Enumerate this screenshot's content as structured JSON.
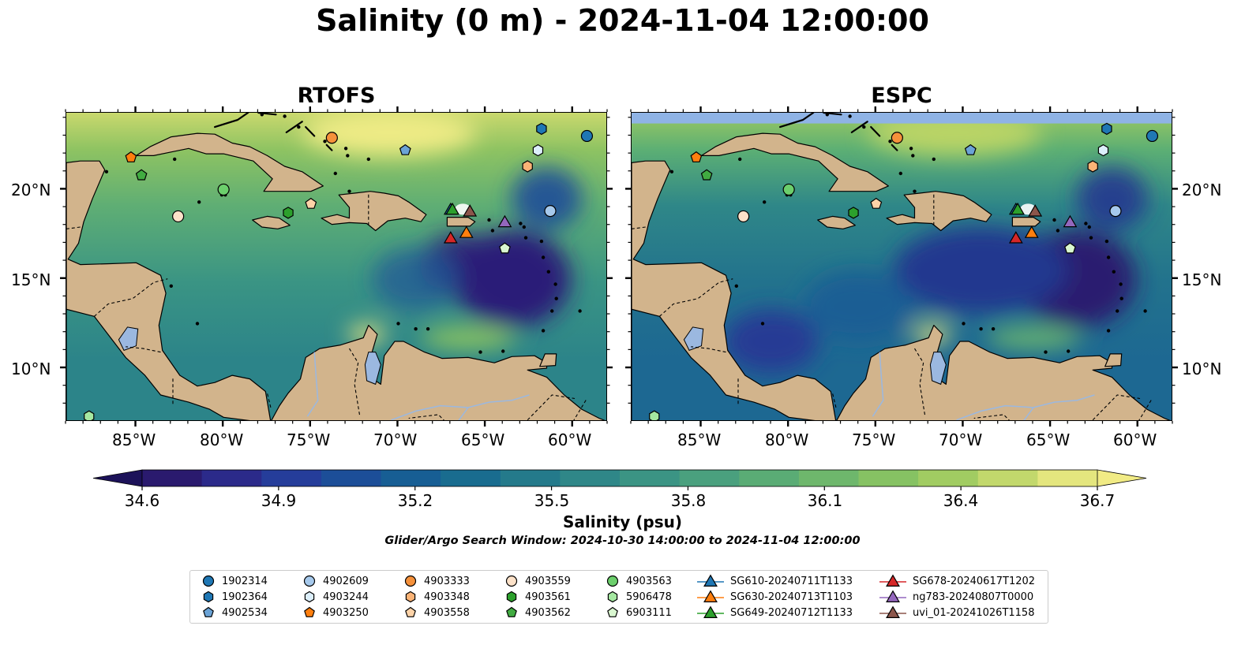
{
  "figure": {
    "title": "Salinity (0 m) - 2024-11-04 12:00:00"
  },
  "panels": [
    {
      "title": "RTOFS"
    },
    {
      "title": "ESPC"
    }
  ],
  "axes": {
    "lat_labels": [
      "20°N",
      "15°N",
      "10°N"
    ],
    "lon_labels": [
      "85°W",
      "80°W",
      "75°W",
      "70°W",
      "65°W",
      "60°W"
    ]
  },
  "colorbar": {
    "ticks": [
      "34.6",
      "34.9",
      "35.2",
      "35.5",
      "35.8",
      "36.1",
      "36.4",
      "36.7"
    ],
    "min": 34.6,
    "max": 36.7,
    "extend": "both",
    "colormap": "haline",
    "colors": [
      "#2a1a6e",
      "#2b2a8a",
      "#253d9a",
      "#1c4e98",
      "#175e94",
      "#196c8f",
      "#247a8b",
      "#2f8788",
      "#3b9484",
      "#4aa07e",
      "#5aac75",
      "#6eb76c",
      "#86c263",
      "#a1cc62",
      "#c2d86c",
      "#e4e67e"
    ],
    "label": "Salinity (psu)"
  },
  "search_window": "Glider/Argo Search Window: 2024-10-30 14:00:00 to 2024-11-04 12:00:00",
  "legend": {
    "columns": [
      [
        {
          "label": "1902314",
          "marker": "circle",
          "color": "#1f77b4"
        },
        {
          "label": "1902364",
          "marker": "hexagon",
          "color": "#1f77b4"
        },
        {
          "label": "4902534",
          "marker": "pentagon",
          "color": "#6ba3d6"
        }
      ],
      [
        {
          "label": "4902609",
          "marker": "circle",
          "color": "#a6c9ec"
        },
        {
          "label": "4903244",
          "marker": "hexagon",
          "color": "#dceffb"
        },
        {
          "label": "4903250",
          "marker": "pentagon",
          "color": "#ff7f0e"
        }
      ],
      [
        {
          "label": "4903333",
          "marker": "circle",
          "color": "#f5913b"
        },
        {
          "label": "4903348",
          "marker": "hexagon",
          "color": "#fbb376"
        },
        {
          "label": "4903558",
          "marker": "pentagon",
          "color": "#fdd3a8"
        }
      ],
      [
        {
          "label": "4903559",
          "marker": "circle",
          "color": "#fde2c9"
        },
        {
          "label": "4903561",
          "marker": "hexagon",
          "color": "#2ca02c"
        },
        {
          "label": "4903562",
          "marker": "pentagon",
          "color": "#41ab41"
        }
      ],
      [
        {
          "label": "4903563",
          "marker": "circle",
          "color": "#6ccf6c"
        },
        {
          "label": "5906478",
          "marker": "hexagon",
          "color": "#a5e8a1"
        },
        {
          "label": "6903111",
          "marker": "pentagon",
          "color": "#d9f7d0"
        }
      ],
      [
        {
          "label": "SG610-20240711T1133",
          "marker": "triangle-line",
          "color": "#1f77b4"
        },
        {
          "label": "SG630-20240713T1103",
          "marker": "triangle-line",
          "color": "#ff7f0e"
        },
        {
          "label": "SG649-20240712T1133",
          "marker": "triangle-line",
          "color": "#2ca02c"
        }
      ],
      [
        {
          "label": "SG678-20240617T1202",
          "marker": "triangle-line",
          "color": "#d62728"
        },
        {
          "label": "ng783-20240807T0000",
          "marker": "triangle-line",
          "color": "#9467bd"
        },
        {
          "label": "uvi_01-20241026T1158",
          "marker": "triangle-line",
          "color": "#8c564b"
        }
      ]
    ]
  },
  "platforms": [
    {
      "id": "1902314",
      "lon": -59.2,
      "lat": 23.0
    },
    {
      "id": "1902364",
      "lon": -61.8,
      "lat": 23.4
    },
    {
      "id": "4902534",
      "lon": -69.6,
      "lat": 22.2
    },
    {
      "id": "4902609",
      "lon": -61.3,
      "lat": 18.8
    },
    {
      "id": "4903244",
      "lon": -62.0,
      "lat": 22.2
    },
    {
      "id": "4903250",
      "lon": -85.3,
      "lat": 21.8
    },
    {
      "id": "4903333",
      "lon": -73.8,
      "lat": 22.9
    },
    {
      "id": "4903348",
      "lon": -62.6,
      "lat": 21.3
    },
    {
      "id": "4903558",
      "lon": -75.0,
      "lat": 19.2
    },
    {
      "id": "4903559",
      "lon": -82.6,
      "lat": 18.5
    },
    {
      "id": "4903561",
      "lon": -76.3,
      "lat": 18.7
    },
    {
      "id": "4903562",
      "lon": -84.7,
      "lat": 20.8
    },
    {
      "id": "4903563",
      "lon": -80.0,
      "lat": 20.0
    },
    {
      "id": "5906478",
      "lon": -87.7,
      "lat": 7.3
    },
    {
      "id": "6903111",
      "lon": -63.9,
      "lat": 16.7
    },
    {
      "id": "SG610-20240711T1133",
      "lon": -67.0,
      "lat": 18.9
    },
    {
      "id": "SG630-20240713T1103",
      "lon": -66.1,
      "lat": 17.6
    },
    {
      "id": "SG649-20240712T1133",
      "lon": -66.9,
      "lat": 18.9
    },
    {
      "id": "SG678-20240617T1202",
      "lon": -67.0,
      "lat": 17.3
    },
    {
      "id": "ng783-20240807T0000",
      "lon": -63.9,
      "lat": 18.2
    },
    {
      "id": "uvi_01-20241026T1158",
      "lon": -65.9,
      "lat": 18.8
    }
  ]
}
